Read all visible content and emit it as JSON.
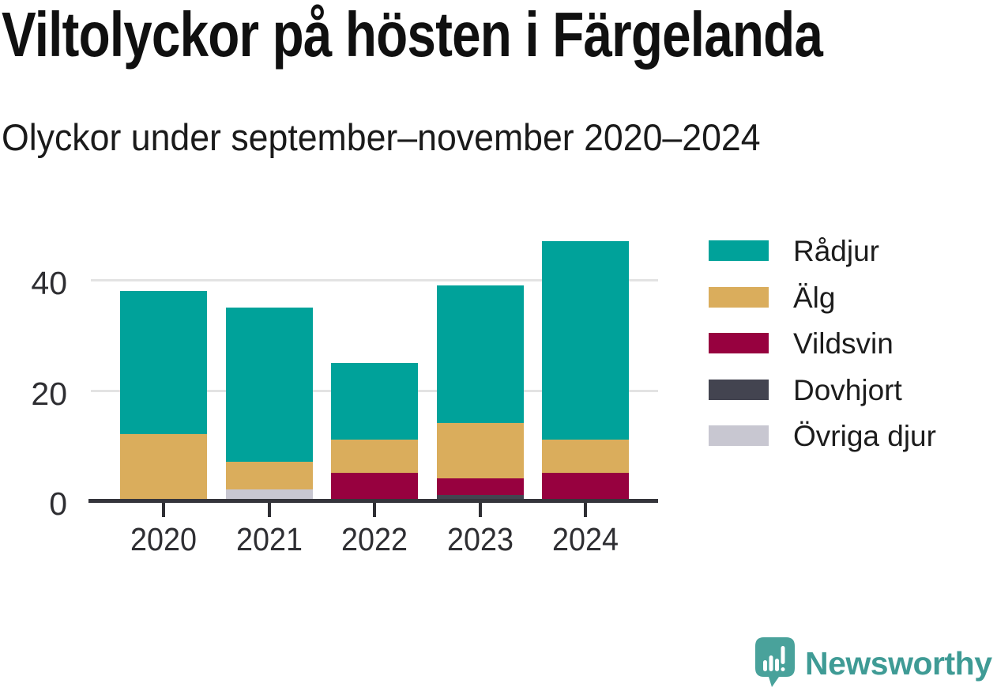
{
  "header": {
    "title": "Viltolyckor på hösten i Färgelanda",
    "subtitle": "Olyckor under september–november 2020–2024"
  },
  "chart_data": {
    "type": "bar",
    "stacked": true,
    "title": "Viltolyckor på hösten i Färgelanda",
    "subtitle": "Olyckor under september–november 2020–2024",
    "categories": [
      "2020",
      "2021",
      "2022",
      "2023",
      "2024"
    ],
    "series": [
      {
        "name": "Rådjur",
        "color": "#00A29A",
        "values": [
          26,
          28,
          14,
          25,
          36
        ]
      },
      {
        "name": "Älg",
        "color": "#DAAD5C",
        "values": [
          12,
          5,
          6,
          10,
          6
        ]
      },
      {
        "name": "Vildsvin",
        "color": "#97013F",
        "values": [
          0,
          0,
          5,
          3,
          5
        ]
      },
      {
        "name": "Dovhjort",
        "color": "#434450",
        "values": [
          0,
          0,
          0,
          1,
          0
        ]
      },
      {
        "name": "Övriga djur",
        "color": "#C8C7D1",
        "values": [
          0,
          2,
          0,
          0,
          0
        ]
      }
    ],
    "stack_order_bottom_to_top": [
      "Övriga djur",
      "Dovhjort",
      "Vildsvin",
      "Älg",
      "Rådjur"
    ],
    "totals": [
      38,
      35,
      25,
      39,
      47
    ],
    "xlabel": "",
    "ylabel": "",
    "yticks": [
      0,
      20,
      40
    ],
    "ylim": [
      0,
      48
    ],
    "grid": "horizontal",
    "legend_position": "right"
  },
  "colors": {
    "axis": "#35353B",
    "tick": "#2F2F34",
    "gridline": "#E3E3E3",
    "axis_text": "#2E2E32",
    "legend_text": "#1C1C1C",
    "background": "#FFFFFF"
  },
  "brand": {
    "name": "Newsworthy",
    "text_color": "#3F9B95",
    "icon": "speech-bubble-bar-chart-icon",
    "icon_color": "#49A29B"
  }
}
